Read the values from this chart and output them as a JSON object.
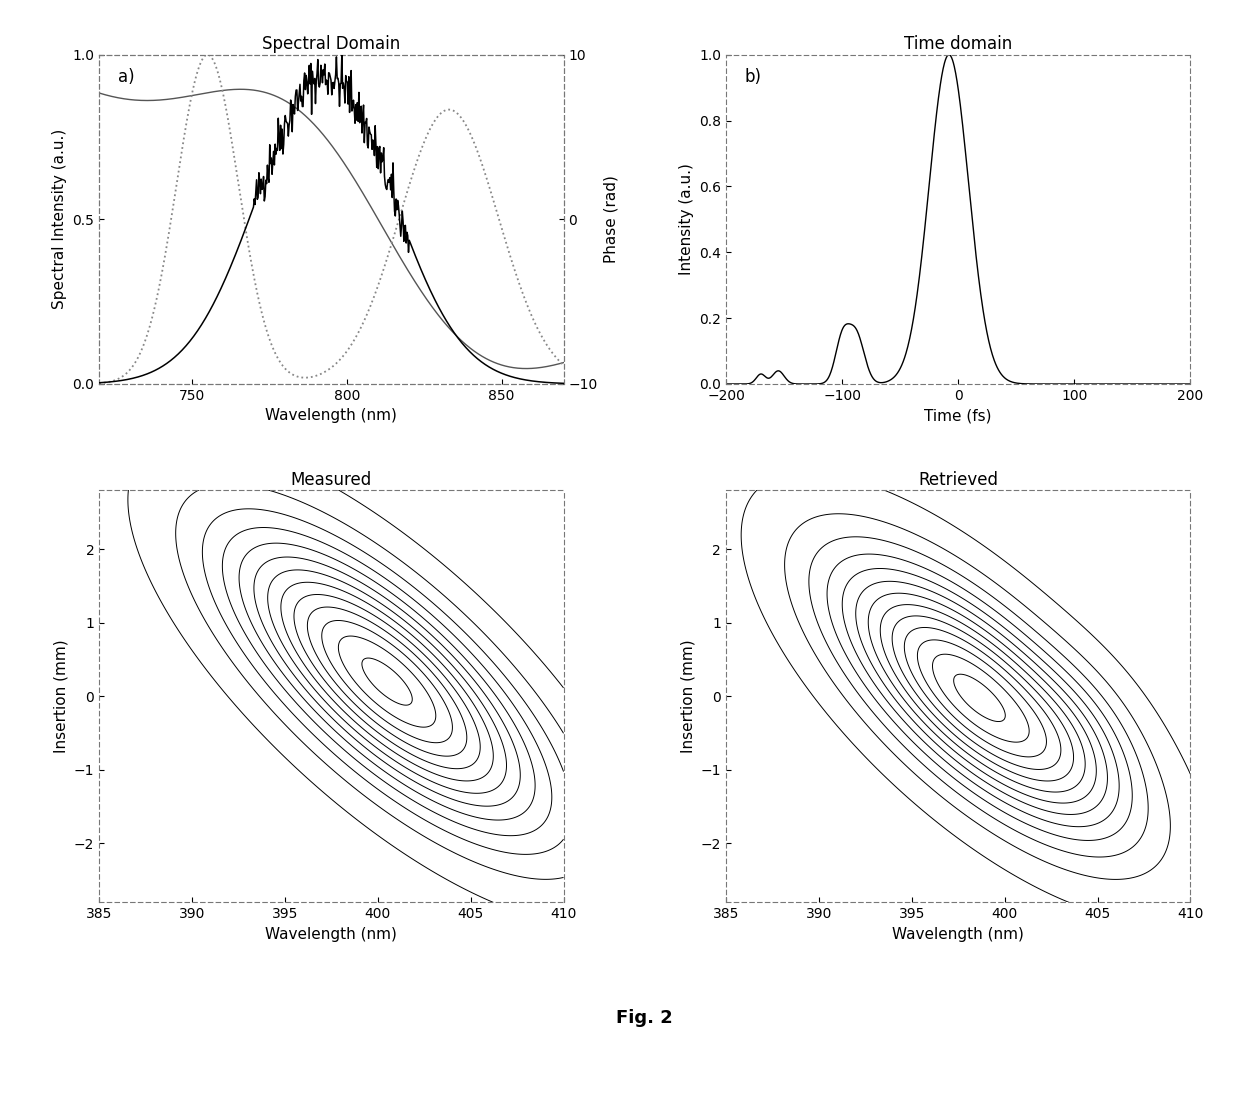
{
  "fig_title": "Fig. 2",
  "panel_a_title": "Spectral Domain",
  "panel_b_title": "Time domain",
  "panel_c_title": "Measured",
  "panel_d_title": "Retrieved",
  "panel_a_label": "a)",
  "panel_b_label": "b)",
  "spectral_xlabel": "Wavelength (nm)",
  "spectral_ylabel": "Spectral Intensity (a.u.)",
  "spectral_ylabel2": "Phase (rad)",
  "spectral_xlim": [
    720,
    870
  ],
  "spectral_xticks": [
    750,
    800,
    850
  ],
  "spectral_ylim": [
    0,
    1
  ],
  "spectral_yticks": [
    0,
    0.5,
    1
  ],
  "spectral_ylim2": [
    -10,
    10
  ],
  "spectral_yticks2": [
    -10,
    0,
    10
  ],
  "time_xlabel": "Time (fs)",
  "time_ylabel": "Intensity (a.u.)",
  "time_xlim": [
    -200,
    200
  ],
  "time_xticks": [
    -200,
    -100,
    0,
    100,
    200
  ],
  "time_ylim": [
    0,
    1
  ],
  "time_yticks": [
    0,
    0.2,
    0.4,
    0.6,
    0.8,
    1
  ],
  "contour_xlabel": "Wavelength (nm)",
  "contour_ylabel": "Insertion (mm)",
  "contour_xlim": [
    385,
    410
  ],
  "contour_xticks": [
    385,
    390,
    395,
    400,
    405,
    410
  ],
  "contour_ylim": [
    -2.8,
    2.8
  ],
  "contour_yticks": [
    -2,
    -1,
    0,
    1,
    2
  ],
  "background_color": "#ffffff",
  "n_contours": 13
}
